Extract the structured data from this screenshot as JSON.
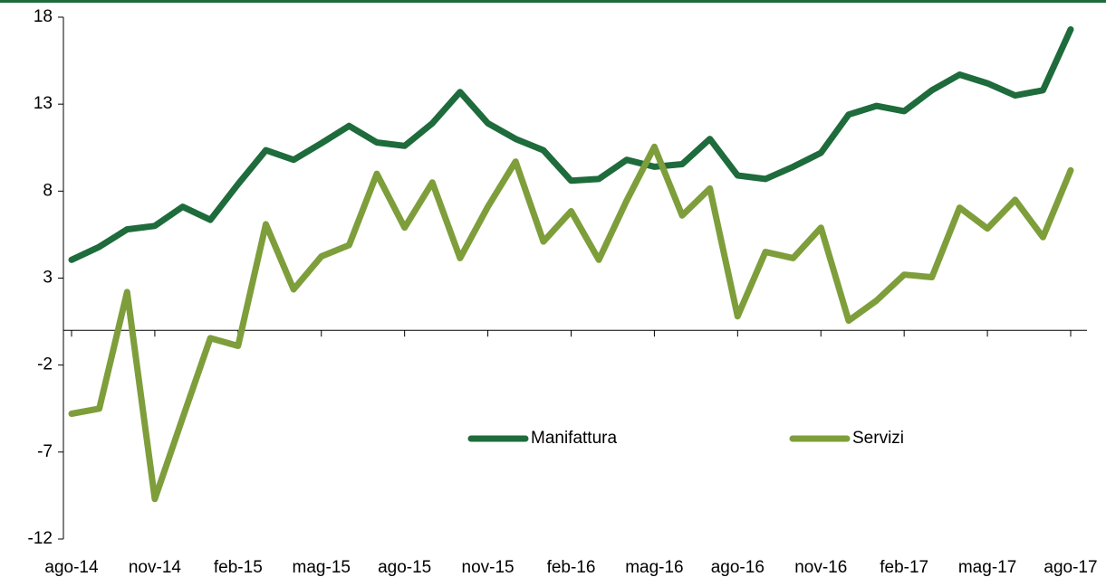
{
  "chart_data": {
    "type": "line",
    "categories": [
      "ago-14",
      null,
      null,
      "nov-14",
      null,
      null,
      "feb-15",
      null,
      null,
      "mag-15",
      null,
      null,
      "ago-15",
      null,
      null,
      "nov-15",
      null,
      null,
      "feb-16",
      null,
      null,
      "mag-16",
      null,
      null,
      "ago-16",
      null,
      null,
      "nov-16",
      null,
      null,
      "feb-17",
      null,
      null,
      "mag-17",
      null,
      null,
      "ago-17"
    ],
    "series": [
      {
        "name": "Manifattura",
        "color": "#1e6b3c",
        "values": [
          4.05,
          4.8,
          5.8,
          6.0,
          7.1,
          6.35,
          8.4,
          10.35,
          9.8,
          10.75,
          11.75,
          10.8,
          10.6,
          11.9,
          13.7,
          11.9,
          11.0,
          10.35,
          8.6,
          8.7,
          9.8,
          9.4,
          9.55,
          11.0,
          8.9,
          8.7,
          9.4,
          10.2,
          12.4,
          12.9,
          12.6,
          13.8,
          14.7,
          14.2,
          13.5,
          13.8,
          17.3
        ]
      },
      {
        "name": "Servizi",
        "color": "#7e9e3b",
        "values": [
          -4.8,
          -4.5,
          2.2,
          -9.7,
          -5.05,
          -0.45,
          -0.9,
          6.1,
          2.35,
          4.25,
          4.9,
          9.0,
          5.9,
          8.5,
          4.15,
          7.1,
          9.7,
          5.1,
          6.85,
          4.05,
          7.45,
          10.55,
          6.6,
          8.15,
          0.8,
          4.5,
          4.15,
          5.9,
          0.55,
          1.7,
          3.2,
          3.05,
          7.05,
          5.85,
          7.5,
          5.35,
          9.2
        ]
      }
    ],
    "ylim": [
      -12,
      18
    ],
    "yticks": [
      -12,
      -7,
      -2,
      3,
      8,
      13,
      18
    ]
  }
}
